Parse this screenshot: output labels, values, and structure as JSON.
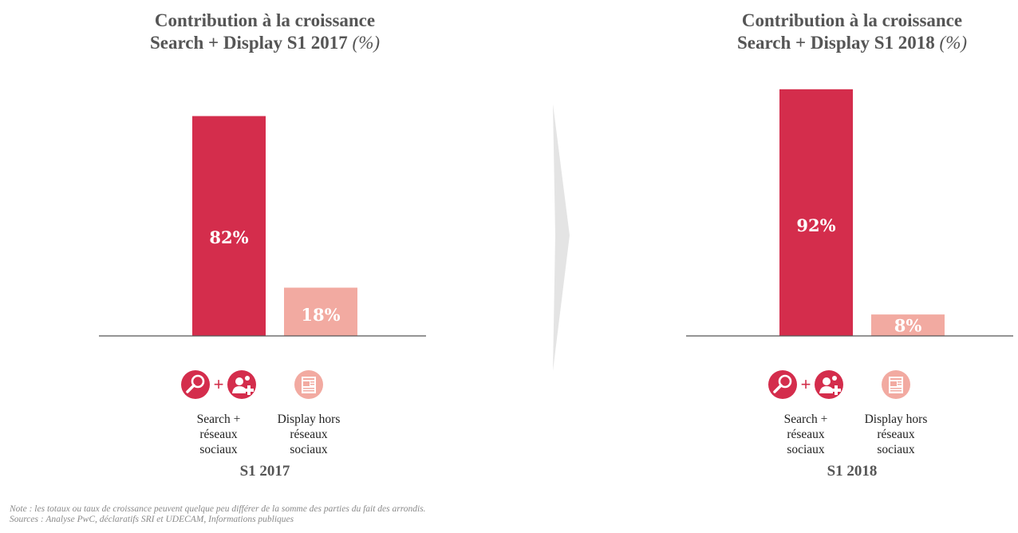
{
  "colors": {
    "primary": "#d42d4c",
    "secondary": "#f2aaa1",
    "axis": "#555555"
  },
  "chart_data": [
    {
      "type": "bar",
      "title_main": "Contribution à la croissance",
      "title_sub": "Search + Display S1 2017",
      "title_unit": "(%)",
      "categories": [
        "Search + réseaux sociaux",
        "Display hors réseaux sociaux"
      ],
      "values": [
        82,
        18
      ],
      "value_labels": [
        "82%",
        "18%"
      ],
      "period": "S1 2017",
      "ylim": [
        0,
        100
      ]
    },
    {
      "type": "bar",
      "title_main": "Contribution à la croissance",
      "title_sub": "Search + Display S1 2018",
      "title_unit": "(%)",
      "categories": [
        "Search + réseaux sociaux",
        "Display hors réseaux sociaux"
      ],
      "values": [
        92,
        8
      ],
      "value_labels": [
        "92%",
        "8%"
      ],
      "period": "S1 2018",
      "ylim": [
        0,
        100
      ]
    }
  ],
  "legend": {
    "search_lines": [
      "Search +",
      "réseaux",
      "sociaux"
    ],
    "display_lines": [
      "Display hors",
      "réseaux",
      "sociaux"
    ],
    "icons": [
      "magnifier-icon",
      "social-network-icon",
      "display-document-icon"
    ]
  },
  "footer": {
    "note": "Note : les totaux ou taux de croissance peuvent quelque peu différer de la somme des parties du fait des arrondis.",
    "sources": "Sources : Analyse PwC, déclaratifs SRI et UDECAM, Informations publiques"
  }
}
